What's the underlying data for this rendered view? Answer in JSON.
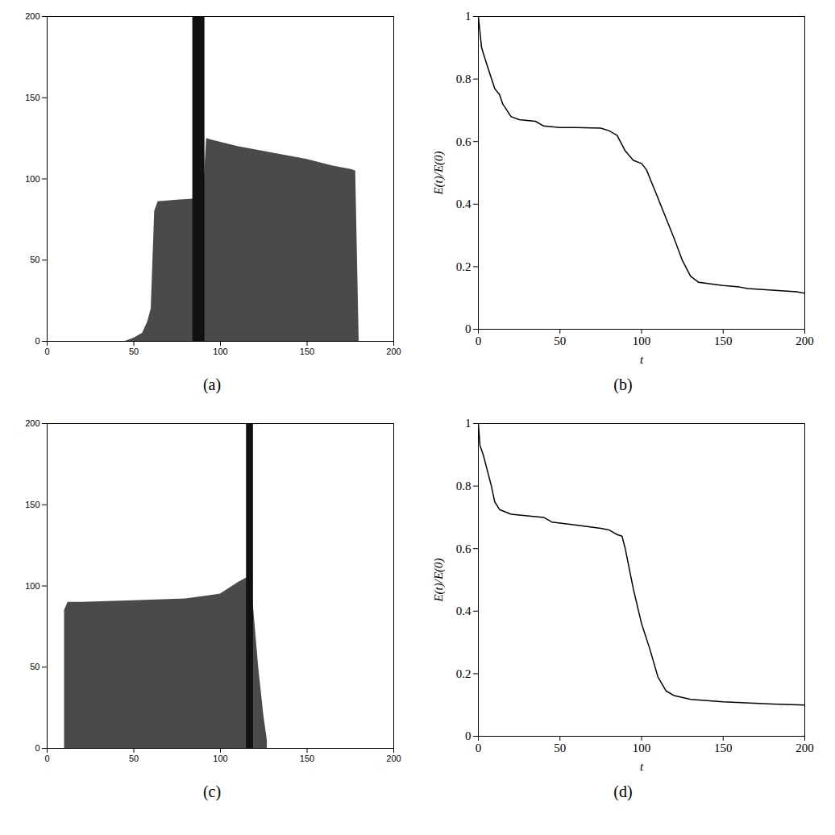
{
  "chart_data": [
    {
      "type": "image",
      "caption": "(a)",
      "xlim": [
        0,
        200
      ],
      "xticks": [
        0,
        50,
        100,
        150,
        200
      ],
      "ylim": [
        0,
        200
      ],
      "yticks": [
        0,
        50,
        100,
        150,
        200
      ],
      "region": {
        "x": [
          45,
          50,
          55,
          58,
          60,
          62,
          64,
          75,
          90,
          92,
          95,
          110,
          130,
          150,
          165,
          175,
          178,
          180
        ],
        "y_top": [
          0,
          2,
          5,
          12,
          20,
          80,
          86,
          87,
          88,
          125,
          124,
          120,
          116,
          112,
          108,
          106,
          105,
          0
        ]
      },
      "stripe": {
        "x": [
          84,
          91
        ],
        "y": [
          0,
          200
        ]
      },
      "colors": [
        "#4a4a4a",
        "#111111"
      ]
    },
    {
      "type": "line",
      "caption": "(b)",
      "x_label": "t",
      "y_label": "E(t)/E(0)",
      "xlim": [
        0,
        200
      ],
      "xticks": [
        0,
        50,
        100,
        150,
        200
      ],
      "ylim": [
        0,
        1
      ],
      "yticks": [
        0,
        0.2,
        0.4,
        0.6,
        0.8,
        1
      ],
      "x": [
        0,
        2,
        5,
        10,
        13,
        15,
        20,
        25,
        35,
        40,
        50,
        60,
        75,
        80,
        85,
        90,
        95,
        100,
        103,
        110,
        120,
        125,
        130,
        135,
        150,
        160,
        165,
        180,
        195,
        200
      ],
      "values": [
        1,
        0.9,
        0.85,
        0.77,
        0.75,
        0.72,
        0.68,
        0.67,
        0.665,
        0.65,
        0.645,
        0.645,
        0.643,
        0.635,
        0.62,
        0.57,
        0.54,
        0.53,
        0.51,
        0.42,
        0.29,
        0.22,
        0.17,
        0.15,
        0.14,
        0.135,
        0.13,
        0.125,
        0.12,
        0.115
      ],
      "color": "#000000"
    },
    {
      "type": "image",
      "caption": "(c)",
      "xlim": [
        0,
        200
      ],
      "xticks": [
        0,
        50,
        100,
        150,
        200
      ],
      "ylim": [
        0,
        200
      ],
      "yticks": [
        0,
        50,
        100,
        150,
        200
      ],
      "region": {
        "x": [
          10,
          12,
          20,
          50,
          80,
          100,
          110,
          115,
          118,
          120,
          122,
          125,
          127
        ],
        "y_top": [
          85,
          90,
          90,
          91,
          92,
          95,
          102,
          105,
          100,
          75,
          50,
          20,
          5
        ]
      },
      "stripe": {
        "x": [
          115,
          119
        ],
        "y": [
          0,
          200
        ]
      },
      "colors": [
        "#4a4a4a",
        "#111111"
      ]
    },
    {
      "type": "line",
      "caption": "(d)",
      "x_label": "t",
      "y_label": "E(t)/E(0)",
      "xlim": [
        0,
        200
      ],
      "xticks": [
        0,
        50,
        100,
        150,
        200
      ],
      "ylim": [
        0,
        1
      ],
      "yticks": [
        0,
        0.2,
        0.4,
        0.6,
        0.8,
        1
      ],
      "x": [
        0,
        1,
        3,
        5,
        8,
        10,
        13,
        20,
        30,
        40,
        45,
        60,
        75,
        80,
        85,
        88,
        90,
        95,
        100,
        105,
        110,
        115,
        120,
        130,
        150,
        180,
        200
      ],
      "values": [
        1,
        0.93,
        0.9,
        0.86,
        0.8,
        0.75,
        0.725,
        0.71,
        0.705,
        0.7,
        0.685,
        0.675,
        0.665,
        0.66,
        0.645,
        0.64,
        0.6,
        0.47,
        0.36,
        0.28,
        0.19,
        0.145,
        0.13,
        0.118,
        0.11,
        0.103,
        0.1
      ],
      "color": "#000000"
    }
  ]
}
